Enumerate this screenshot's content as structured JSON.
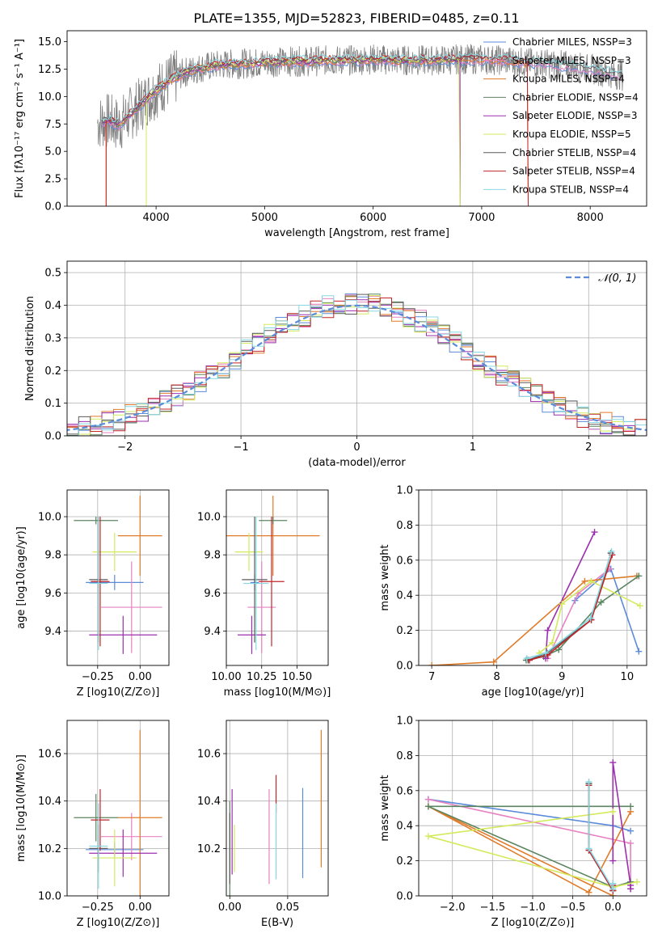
{
  "figure": {
    "title": "PLATE=1355, MJD=52823, FIBERID=0485, z=0.11"
  },
  "colors": {
    "models": [
      "#5b8bd9",
      "#e882c2",
      "#e07b2a",
      "#5b8560",
      "#9b2fae",
      "#d4ea5c",
      "#5c5c5c",
      "#c0252a",
      "#88d8e3"
    ],
    "spectrum_data": "#808080",
    "gaussian": "#5b8bd9",
    "grid": "#b0b0b0"
  },
  "chart_data": [
    {
      "id": "spectrum",
      "type": "line",
      "title": "PLATE=1355, MJD=52823, FIBERID=0485, z=0.11",
      "xlabel": "wavelength [Angstrom, rest frame]",
      "ylabel": "Flux [fλ10⁻¹⁷ erg cm⁻² s⁻¹ A⁻¹]",
      "xlim": [
        3180,
        8520
      ],
      "ylim": [
        0,
        16
      ],
      "xticks": [
        4000,
        5000,
        6000,
        7000,
        8000
      ],
      "yticks": [
        0.0,
        2.5,
        5.0,
        7.5,
        10.0,
        12.5,
        15.0
      ],
      "grid": false,
      "legend": "upper-right",
      "legend_entries": [
        "Chabrier MILES, NSSP=3",
        "Salpeter MILES, NSSP=3",
        "Kroupa MILES, NSSP=4",
        "Chabrier ELODIE, NSSP=4",
        "Salpeter ELODIE, NSSP=3",
        "Kroupa ELODIE, NSSP=5",
        "Chabrier STELIB, NSSP=4",
        "Salpeter STELIB, NSSP=4",
        "Kroupa STELIB, NSSP=4"
      ],
      "data_envelope": {
        "x": [
          3460,
          3560,
          3660,
          3760,
          3860,
          3960,
          4060,
          4160,
          4260,
          4400,
          4600,
          4800,
          5000,
          5200,
          5400,
          5600,
          5800,
          6000,
          6200,
          6400,
          6600,
          6800,
          7000,
          7200,
          7400,
          7600,
          7800,
          8000,
          8200,
          8300
        ],
        "y": [
          7.6,
          7.8,
          7.4,
          8.4,
          9.3,
          10.2,
          11.0,
          11.6,
          12.2,
          12.6,
          12.9,
          13.0,
          13.1,
          13.2,
          13.2,
          13.3,
          13.3,
          13.4,
          13.3,
          13.3,
          13.3,
          13.4,
          13.4,
          13.3,
          13.1,
          13.0,
          12.8,
          12.5,
          12.1,
          11.9
        ]
      },
      "model_ranges": [
        {
          "start": 3500,
          "end": 8300
        },
        {
          "start": 3500,
          "end": 8300
        },
        {
          "start": 3540,
          "end": 7430
        },
        {
          "start": 3500,
          "end": 6800
        },
        {
          "start": 3500,
          "end": 6800
        },
        {
          "start": 3910,
          "end": 6800
        },
        {
          "start": 3500,
          "end": 8300
        },
        {
          "start": 3540,
          "end": 7430
        },
        {
          "start": 3500,
          "end": 8300
        }
      ]
    },
    {
      "id": "residuals",
      "type": "line",
      "xlabel": "(data-model)/error",
      "ylabel": "Normed distribution",
      "xlim": [
        -2.5,
        2.5
      ],
      "ylim": [
        0,
        0.535
      ],
      "xticks": [
        -2,
        -1,
        0,
        1,
        2
      ],
      "yticks": [
        0.0,
        0.1,
        0.2,
        0.3,
        0.4,
        0.5
      ],
      "grid": true,
      "legend": "upper-right",
      "legend_entries": [
        "𝒩(0, 1)"
      ],
      "bin_width": 0.1
    },
    {
      "id": "age_vs_Z",
      "type": "scatter",
      "xlabel": "Z [log10(Z/Z⊙)]",
      "ylabel": "age [log10(age/yr)]",
      "xlim": [
        -0.43,
        0.17
      ],
      "ylim": [
        9.22,
        10.14
      ],
      "xticks": [
        -0.25,
        0.0
      ],
      "yticks": [
        9.4,
        9.6,
        9.8,
        10.0
      ],
      "grid": true,
      "points": [
        {
          "x": -0.15,
          "y": 9.655,
          "xerr": 0.17,
          "yerr": 0.04
        },
        {
          "x": -0.05,
          "y": 9.525,
          "xerr": 0.18,
          "yerr": 0.24
        },
        {
          "x": 0.0,
          "y": 9.9,
          "xerr": 0.13,
          "yerr": 0.21
        },
        {
          "x": -0.26,
          "y": 9.98,
          "xerr": 0.13,
          "yerr": 0.02
        },
        {
          "x": -0.1,
          "y": 9.38,
          "xerr": 0.2,
          "yerr": 0.1
        },
        {
          "x": -0.15,
          "y": 9.815,
          "xerr": 0.13,
          "yerr": 0.1
        },
        {
          "x": -0.245,
          "y": 9.67,
          "xerr": 0.055,
          "yerr": 0.33
        },
        {
          "x": -0.235,
          "y": 9.66,
          "xerr": 0.055,
          "yerr": 0.34
        },
        {
          "x": -0.245,
          "y": 9.65,
          "xerr": 0.055,
          "yerr": 0.35
        }
      ]
    },
    {
      "id": "age_vs_mass",
      "type": "scatter",
      "xlabel": "mass [log10(M/M⊙)]",
      "ylabel": "",
      "xlim": [
        10.0,
        10.72
      ],
      "ylim": [
        9.22,
        10.14
      ],
      "xticks": [
        10.0,
        10.25,
        10.5
      ],
      "yticks": [
        9.4,
        9.6,
        9.8,
        10.0
      ],
      "grid": true,
      "points": [
        {
          "x": 10.2,
          "y": 9.655,
          "xerr": 0.03,
          "yerr": 0.04
        },
        {
          "x": 10.25,
          "y": 9.525,
          "xerr": 0.1,
          "yerr": 0.24
        },
        {
          "x": 10.33,
          "y": 9.9,
          "xerr": 0.33,
          "yerr": 0.21
        },
        {
          "x": 10.33,
          "y": 9.98,
          "xerr": 0.1,
          "yerr": 0.02
        },
        {
          "x": 10.18,
          "y": 9.38,
          "xerr": 0.1,
          "yerr": 0.1
        },
        {
          "x": 10.16,
          "y": 9.815,
          "xerr": 0.1,
          "yerr": 0.1
        },
        {
          "x": 10.2,
          "y": 9.67,
          "xerr": 0.09,
          "yerr": 0.33
        },
        {
          "x": 10.32,
          "y": 9.66,
          "xerr": 0.09,
          "yerr": 0.34
        },
        {
          "x": 10.21,
          "y": 9.65,
          "xerr": 0.09,
          "yerr": 0.35
        }
      ]
    },
    {
      "id": "massweight_vs_age",
      "type": "line",
      "xlabel": "age [log10(age/yr)]",
      "ylabel": "mass weight",
      "xlim": [
        6.8,
        10.3
      ],
      "ylim": [
        0,
        1
      ],
      "xticks": [
        7,
        8,
        9,
        10
      ],
      "yticks": [
        0.0,
        0.2,
        0.4,
        0.6,
        0.8,
        1.0
      ],
      "grid": true,
      "series": [
        {
          "x": [
            10.18,
            9.75,
            9.2
          ],
          "y": [
            0.08,
            0.55,
            0.37
          ]
        },
        {
          "x": [
            8.78,
            9.25,
            9.73
          ],
          "y": [
            0.04,
            0.41,
            0.55
          ]
        },
        {
          "x": [
            7.0,
            7.95,
            9.35,
            10.15
          ],
          "y": [
            0.0,
            0.02,
            0.48,
            0.51
          ]
        },
        {
          "x": [
            8.45,
            8.72,
            8.95,
            9.6,
            10.18
          ],
          "y": [
            0.03,
            0.05,
            0.09,
            0.36,
            0.51
          ]
        },
        {
          "x": [
            8.75,
            8.78,
            9.5
          ],
          "y": [
            0.04,
            0.2,
            0.76
          ]
        },
        {
          "x": [
            8.65,
            8.85,
            9.0,
            9.45,
            10.2
          ],
          "y": [
            0.07,
            0.13,
            0.35,
            0.48,
            0.34
          ]
        },
        {
          "x": [
            8.48,
            8.77,
            9.45,
            9.75
          ],
          "y": [
            0.03,
            0.07,
            0.26,
            0.64
          ]
        },
        {
          "x": [
            8.5,
            8.78,
            9.45,
            9.77
          ],
          "y": [
            0.03,
            0.06,
            0.26,
            0.63
          ]
        },
        {
          "x": [
            8.46,
            8.75,
            9.44,
            9.76
          ],
          "y": [
            0.04,
            0.07,
            0.27,
            0.65
          ]
        }
      ]
    },
    {
      "id": "mass_vs_Z",
      "type": "scatter",
      "xlabel": "Z [log10(Z/Z⊙)]",
      "ylabel": "mass [log10(M/M⊙)]",
      "xlim": [
        -0.43,
        0.17
      ],
      "ylim": [
        10.0,
        10.74
      ],
      "xticks": [
        -0.25,
        0.0
      ],
      "yticks": [
        10.0,
        10.2,
        10.4,
        10.6
      ],
      "grid": true,
      "points": [
        {
          "x": -0.15,
          "y": 10.195,
          "xerr": 0.17,
          "yerr": 0.03
        },
        {
          "x": -0.05,
          "y": 10.25,
          "xerr": 0.18,
          "yerr": 0.1
        },
        {
          "x": 0.0,
          "y": 10.33,
          "xerr": 0.13,
          "yerr": 0.37
        },
        {
          "x": -0.26,
          "y": 10.33,
          "xerr": 0.13,
          "yerr": 0.1
        },
        {
          "x": -0.1,
          "y": 10.18,
          "xerr": 0.2,
          "yerr": 0.1
        },
        {
          "x": -0.15,
          "y": 10.16,
          "xerr": 0.13,
          "yerr": 0.12
        },
        {
          "x": -0.245,
          "y": 10.2,
          "xerr": 0.055,
          "yerr": 0.1
        },
        {
          "x": -0.235,
          "y": 10.32,
          "xerr": 0.055,
          "yerr": 0.13
        },
        {
          "x": -0.245,
          "y": 10.21,
          "xerr": 0.055,
          "yerr": 0.18
        }
      ]
    },
    {
      "id": "mass_vs_ebv",
      "type": "scatter",
      "xlabel": "E(B-V)",
      "ylabel": "",
      "xlim": [
        -0.003,
        0.085
      ],
      "ylim": [
        10.0,
        10.74
      ],
      "xticks": [
        0.0,
        0.05
      ],
      "yticks": [
        10.2,
        10.4,
        10.6
      ],
      "grid": true,
      "points": [
        {
          "x": 0.063,
          "y": 10.265,
          "yerr": 0.19
        },
        {
          "x": 0.034,
          "y": 10.25,
          "yerr": 0.2
        },
        {
          "x": 0.079,
          "y": 10.41,
          "yerr": 0.29
        },
        {
          "x": 0.0,
          "y": 10.2,
          "yerr": 0.2
        },
        {
          "x": 0.002,
          "y": 10.27,
          "yerr": 0.18
        },
        {
          "x": 0.004,
          "y": 10.2,
          "yerr": 0.1
        },
        {
          "x": 0.0,
          "y": 10.2,
          "yerr": 0.15
        },
        {
          "x": 0.04,
          "y": 10.43,
          "yerr": 0.08
        },
        {
          "x": 0.04,
          "y": 10.23,
          "yerr": 0.16
        }
      ]
    },
    {
      "id": "massweight_vs_Z",
      "type": "line",
      "xlabel": "Z [log10(Z/Z⊙)]",
      "ylabel": "mass weight",
      "xlim": [
        -2.42,
        0.42
      ],
      "ylim": [
        0,
        1
      ],
      "xticks": [
        -2.0,
        -1.5,
        -1.0,
        -0.5,
        0.0
      ],
      "yticks": [
        0.0,
        0.2,
        0.4,
        0.6,
        0.8,
        1.0
      ],
      "grid": true,
      "series": [
        {
          "x": [
            0.22,
            0.0,
            -2.3
          ],
          "y": [
            0.37,
            0.4,
            0.55
          ]
        },
        {
          "x": [
            0.22,
            0.22,
            -2.3
          ],
          "y": [
            0.04,
            0.3,
            0.55
          ]
        },
        {
          "x": [
            0.22,
            -0.3,
            -2.3,
            0.0
          ],
          "y": [
            0.48,
            0.02,
            0.51,
            0.0
          ]
        },
        {
          "x": [
            0.22,
            0.0,
            -2.3,
            0.22
          ],
          "y": [
            0.08,
            0.05,
            0.51,
            0.51
          ]
        },
        {
          "x": [
            0.22,
            0.22,
            0.0,
            -0.0
          ],
          "y": [
            0.04,
            0.06,
            0.76,
            0.2
          ]
        },
        {
          "x": [
            0.3,
            0.0,
            -2.3,
            0.0
          ],
          "y": [
            0.08,
            0.05,
            0.34,
            0.48
          ]
        },
        {
          "x": [
            -0.3,
            -0.3,
            0.0,
            0.0
          ],
          "y": [
            0.64,
            0.26,
            0.03,
            0.07
          ]
        },
        {
          "x": [
            -0.3,
            -0.3,
            0.0,
            0.0
          ],
          "y": [
            0.63,
            0.26,
            0.03,
            0.06
          ]
        },
        {
          "x": [
            -0.3,
            -0.3,
            0.0,
            0.0
          ],
          "y": [
            0.65,
            0.27,
            0.04,
            0.07
          ]
        }
      ]
    }
  ]
}
